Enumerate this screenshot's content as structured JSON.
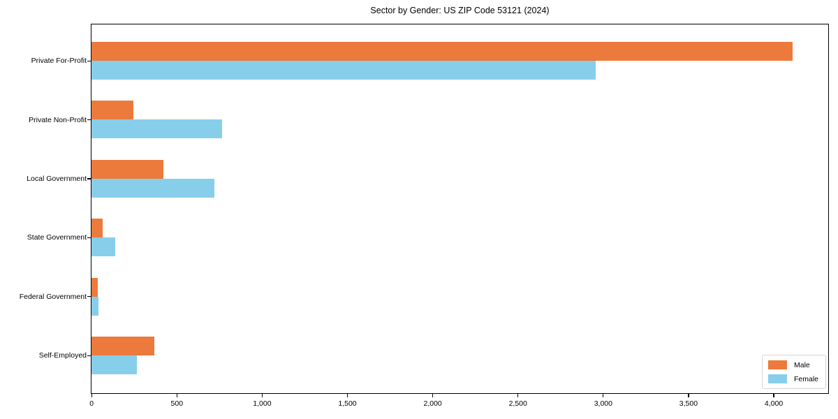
{
  "chart_data": {
    "type": "bar",
    "orientation": "horizontal",
    "title": "Sector by Gender: US ZIP Code 53121 (2024)",
    "categories": [
      "Private For-Profit",
      "Private Non-Profit",
      "Local Government",
      "State Government",
      "Federal Government",
      "Self-Employed"
    ],
    "series": [
      {
        "name": "Male",
        "color": "#ec7a3c",
        "values": [
          4110,
          245,
          420,
          65,
          38,
          370
        ]
      },
      {
        "name": "Female",
        "color": "#87ceeb",
        "values": [
          2955,
          765,
          720,
          140,
          40,
          265
        ]
      }
    ],
    "xlim": [
      0,
      4320
    ],
    "xticks": [
      0,
      500,
      1000,
      1500,
      2000,
      2500,
      3000,
      3500,
      4000
    ],
    "xtick_labels": [
      "0",
      "500",
      "1,000",
      "1,500",
      "2,000",
      "2,500",
      "3,000",
      "3,500",
      "4,000"
    ],
    "xlabel": "",
    "ylabel": "",
    "grid": false,
    "legend_position": "lower right"
  }
}
